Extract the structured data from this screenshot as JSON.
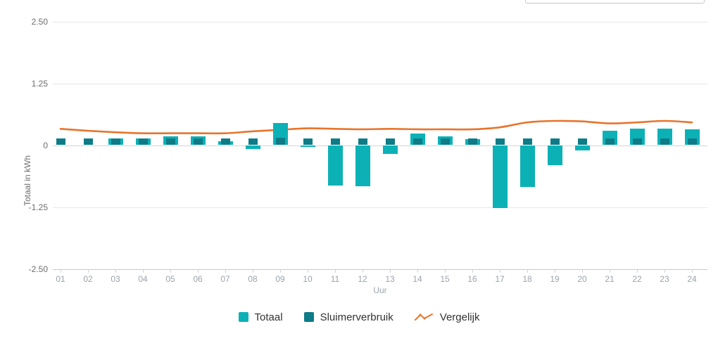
{
  "chart_data": {
    "type": "bar+line combo",
    "title": "",
    "xlabel": "Uur",
    "ylabel": "Totaal in kWh",
    "ylim": [
      -2.5,
      2.5
    ],
    "y_ticks": [
      "2.50",
      "1.25",
      "0",
      "-1.25",
      "-2.50"
    ],
    "grid": "horizontal",
    "legend_position": "bottom",
    "categories": [
      "01",
      "02",
      "03",
      "04",
      "05",
      "06",
      "07",
      "08",
      "09",
      "10",
      "11",
      "12",
      "13",
      "14",
      "15",
      "16",
      "17",
      "18",
      "19",
      "20",
      "21",
      "22",
      "23",
      "24"
    ],
    "series": [
      {
        "name": "Totaal",
        "type": "bar",
        "color": "#0cb1b6",
        "values": [
          0.0,
          0.0,
          0.14,
          0.14,
          0.18,
          0.18,
          0.08,
          -0.08,
          0.45,
          -0.04,
          -0.81,
          -0.83,
          -0.18,
          0.23,
          0.18,
          0.12,
          -1.27,
          -0.85,
          -0.4,
          -0.11,
          0.29,
          0.34,
          0.34,
          0.32
        ]
      },
      {
        "name": "Sluimerverbruik",
        "type": "bar",
        "color": "#0d7c87",
        "values": [
          0.14,
          0.14,
          0.14,
          0.14,
          0.14,
          0.14,
          0.13,
          0.13,
          0.15,
          0.14,
          0.14,
          0.14,
          0.14,
          0.14,
          0.14,
          0.14,
          0.14,
          0.14,
          0.13,
          0.14,
          0.14,
          0.14,
          0.14,
          0.14
        ]
      },
      {
        "name": "Vergelijk",
        "type": "line",
        "color": "#e8742c",
        "values": [
          0.33,
          0.29,
          0.26,
          0.24,
          0.24,
          0.24,
          0.24,
          0.28,
          0.31,
          0.34,
          0.33,
          0.32,
          0.33,
          0.32,
          0.32,
          0.32,
          0.36,
          0.46,
          0.49,
          0.48,
          0.44,
          0.46,
          0.49,
          0.46
        ]
      }
    ]
  }
}
